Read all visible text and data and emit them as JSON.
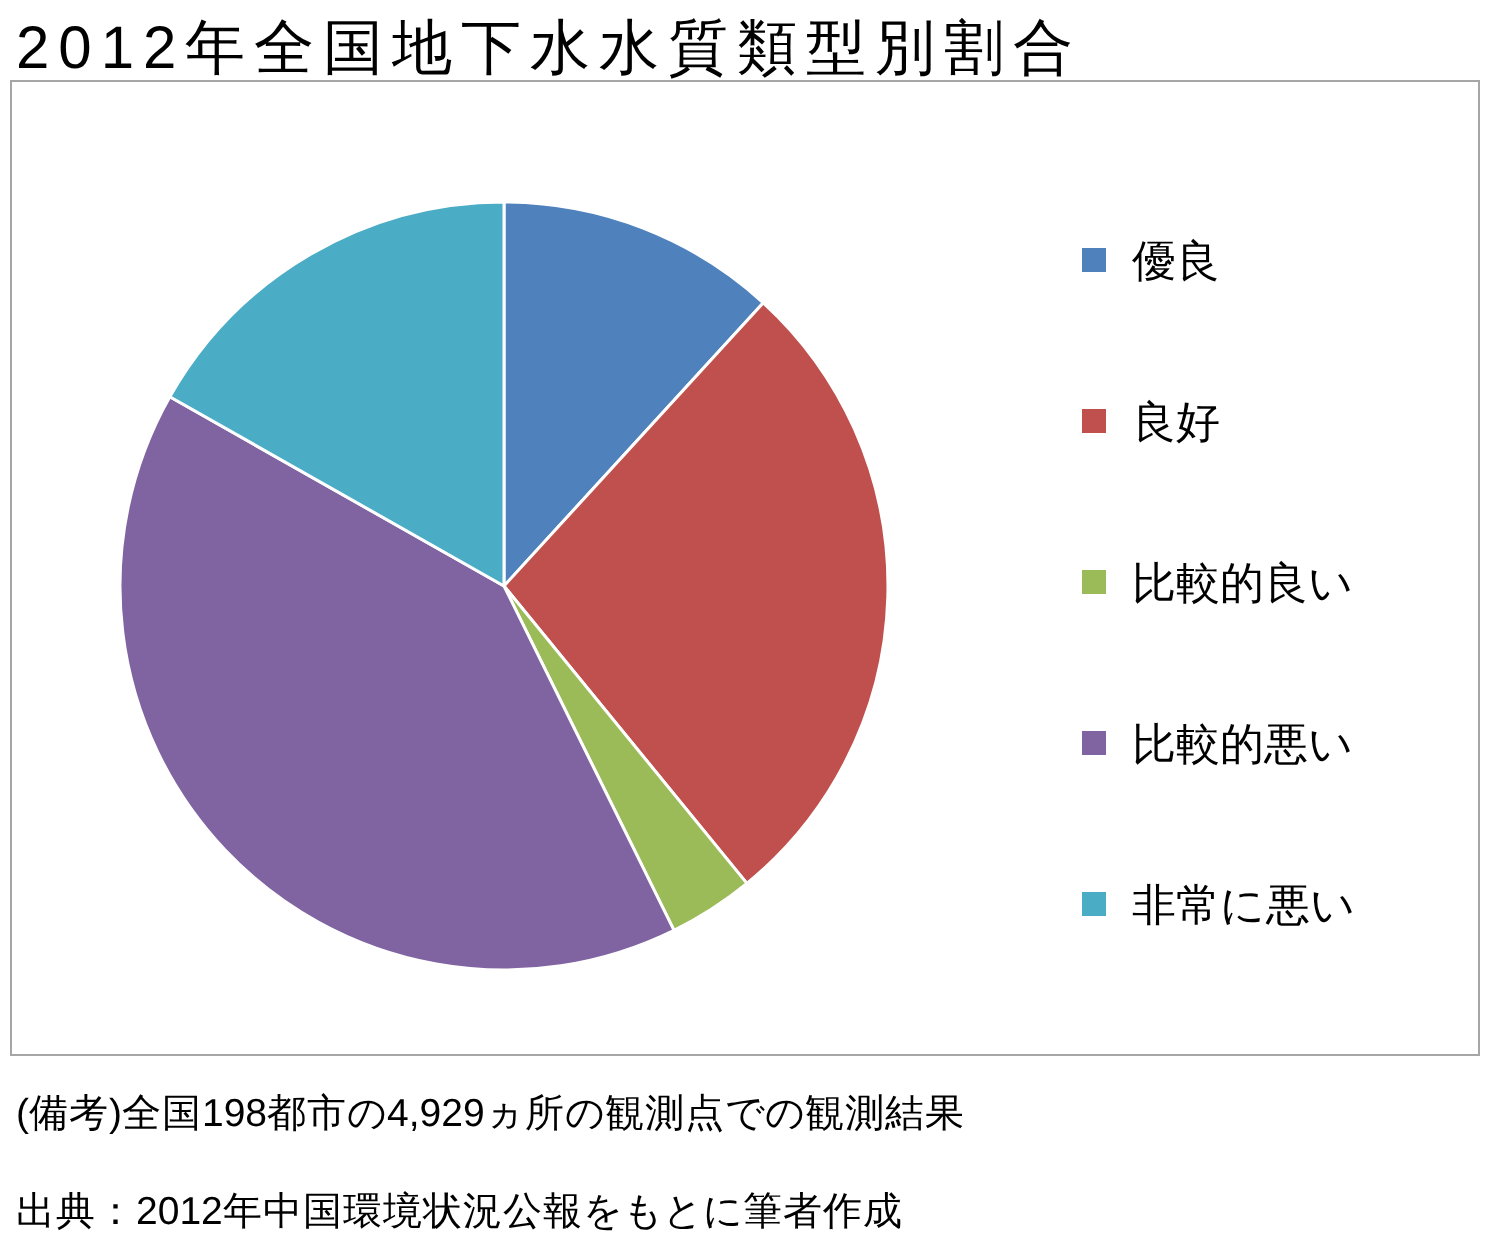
{
  "chart_data": {
    "type": "pie",
    "title": "2012年全国地下水水質類型別割合",
    "categories": [
      "優良",
      "良好",
      "比較的良い",
      "比較的悪い",
      "非常に悪い"
    ],
    "values": [
      11.8,
      27.3,
      3.6,
      40.5,
      16.8
    ],
    "colors": [
      "#4f81bd",
      "#c0504d",
      "#9bbb59",
      "#8064a2",
      "#4bacc6"
    ],
    "legend": "right",
    "annotations": [
      "(備考)全国198都市の4,929ヵ所の観測点での観測結果",
      "出典：2012年中国環境状況公報をもとに筆者作成"
    ]
  }
}
